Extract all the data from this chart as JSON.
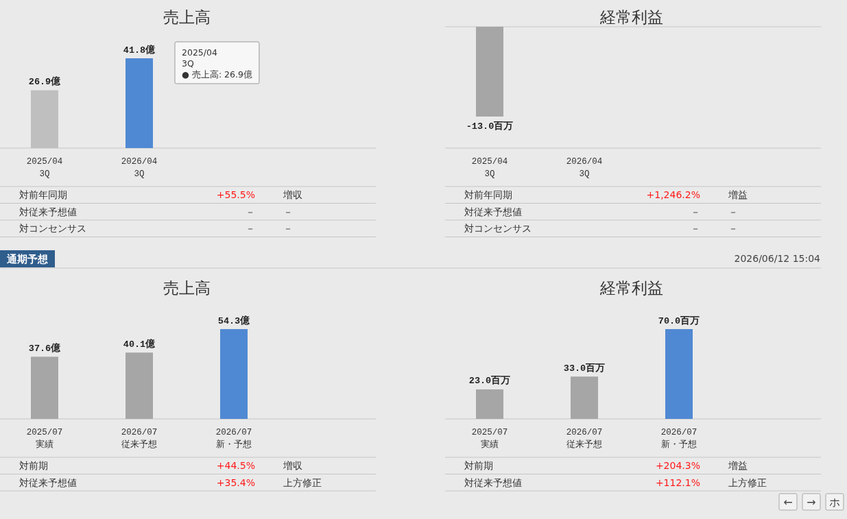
{
  "chart_data": [
    {
      "type": "bar",
      "title": "売上高",
      "categories": [
        "2025/04\n3Q",
        "2026/04\n3Q"
      ],
      "values": [
        26.9,
        41.8
      ],
      "colors": [
        "#bfbfbf",
        "#5089d3"
      ],
      "value_labels": [
        "26.9億",
        "41.8億"
      ],
      "annotations": [
        "2025/04\n3Q\n● 売上高: 26.9億"
      ]
    },
    {
      "type": "bar",
      "title": "経常利益",
      "categories": [
        "2025/04\n3Q",
        "2026/04\n3Q"
      ],
      "values": [
        -13.0,
        null
      ],
      "colors": [
        "#a6a6a6",
        null
      ],
      "value_labels": [
        "-13.0百万",
        null
      ],
      "ref_lines": [
        {
          "axis": "y",
          "value": 0
        }
      ]
    },
    {
      "type": "other",
      "annotations": [
        "対前年同期",
        "+55.5%",
        "増収",
        "対従来予想値",
        "－",
        "－",
        "対コンセンサス",
        "－",
        "－"
      ]
    },
    {
      "type": "other",
      "annotations": [
        "対前年同期",
        "+1,246.2%",
        "増益",
        "対従来予想値",
        "－",
        "－",
        "対コンセンサス",
        "－",
        "－"
      ]
    },
    {
      "type": "other",
      "title": "通期予想",
      "annotations": [
        "2026/06/12 15:04"
      ]
    },
    {
      "type": "bar",
      "title": "売上高",
      "categories": [
        "2025/07\n実績",
        "2026/07\n従来予想",
        "2026/07\n新・予想"
      ],
      "values": [
        37.6,
        40.1,
        54.3
      ],
      "colors": [
        "#a6a6a6",
        "#a6a6a6",
        "#5089d3"
      ],
      "value_labels": [
        "37.6億",
        "40.1億",
        "54.3億"
      ]
    },
    {
      "type": "bar",
      "title": "経常利益",
      "categories": [
        "2025/07\n実績",
        "2026/07\n従来予想",
        "2026/07\n新・予想"
      ],
      "values": [
        23.0,
        33.0,
        70.0
      ],
      "colors": [
        "#a6a6a6",
        "#a6a6a6",
        "#5089d3"
      ],
      "value_labels": [
        "23.0百万",
        "33.0百万",
        "70.0百万"
      ]
    },
    {
      "type": "other",
      "annotations": [
        "対前期",
        "+44.5%",
        "増収",
        "対従来予想値",
        "+35.4%",
        "上方修正"
      ]
    },
    {
      "type": "other",
      "annotations": [
        "対前期",
        "+204.3%",
        "増益",
        "対従来予想値",
        "+112.1%",
        "上方修正"
      ]
    },
    {
      "type": "other",
      "annotations": [
        "←",
        "→",
        "ホ"
      ]
    }
  ]
}
